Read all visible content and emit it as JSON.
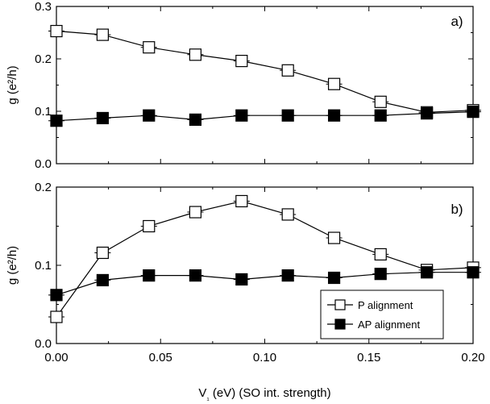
{
  "chart_data": [
    {
      "type": "line",
      "panel_label": "a)",
      "xlabel": "",
      "ylabel": "g (e²/h)",
      "xlim": [
        0,
        0.2
      ],
      "ylim": [
        0,
        0.3
      ],
      "x": [
        0.0,
        0.0222,
        0.0444,
        0.0667,
        0.0889,
        0.1111,
        0.1333,
        0.1556,
        0.1778,
        0.2
      ],
      "xticks": [
        0.0,
        0.05,
        0.1,
        0.15,
        0.2
      ],
      "yticks": [
        0.0,
        0.1,
        0.2,
        0.3
      ],
      "ytick_labels": [
        "0.0",
        "0.1",
        "0.2",
        "0.3"
      ],
      "grid": false,
      "series": [
        {
          "name": "P alignment",
          "marker": "open-square",
          "values": [
            0.253,
            0.246,
            0.222,
            0.208,
            0.196,
            0.178,
            0.152,
            0.118,
            0.098,
            0.102
          ]
        },
        {
          "name": "AP alignment",
          "marker": "filled-square",
          "values": [
            0.082,
            0.087,
            0.092,
            0.084,
            0.092,
            0.092,
            0.092,
            0.092,
            0.096,
            0.099
          ]
        }
      ]
    },
    {
      "type": "line",
      "panel_label": "b)",
      "xlabel": "V₁ (eV) (SO int. strength)",
      "ylabel": "g (e²/h)",
      "xlim": [
        0,
        0.2
      ],
      "ylim": [
        0,
        0.2
      ],
      "x": [
        0.0,
        0.0222,
        0.0444,
        0.0667,
        0.0889,
        0.1111,
        0.1333,
        0.1556,
        0.1778,
        0.2
      ],
      "xticks": [
        0.0,
        0.05,
        0.1,
        0.15,
        0.2
      ],
      "xtick_labels": [
        "0.00",
        "0.05",
        "0.10",
        "0.15",
        "0.20"
      ],
      "yticks": [
        0.0,
        0.1,
        0.2
      ],
      "ytick_labels": [
        "0.0",
        "0.1",
        "0.2"
      ],
      "grid": false,
      "legend_position": "bottom-right",
      "series": [
        {
          "name": "P alignment",
          "marker": "open-square",
          "values": [
            0.034,
            0.116,
            0.15,
            0.168,
            0.182,
            0.165,
            0.135,
            0.114,
            0.094,
            0.097
          ]
        },
        {
          "name": "AP alignment",
          "marker": "filled-square",
          "values": [
            0.062,
            0.081,
            0.087,
            0.087,
            0.082,
            0.087,
            0.084,
            0.089,
            0.091,
            0.091
          ]
        }
      ]
    }
  ]
}
